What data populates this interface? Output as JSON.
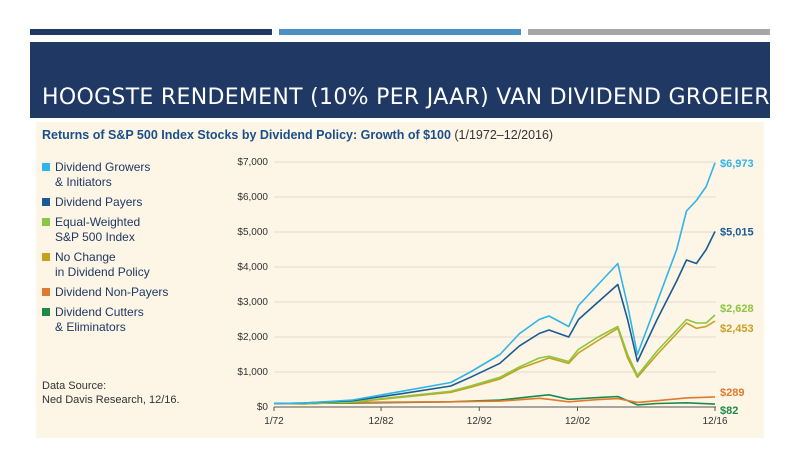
{
  "slide": {
    "title": "HOOGSTE RENDEMENT (10% PER JAAR) VAN DIVIDEND GROEIERS",
    "accent_bars": [
      "#1f3864",
      "#4a90c2",
      "#a6a6a6"
    ]
  },
  "chart_data": {
    "type": "line",
    "title": "Returns of S&P 500 Index Stocks by Dividend Policy: Growth of $100",
    "subtitle": "(1/1972–12/2016)",
    "source": "Data Source:\nNed Davis Research, 12/16.",
    "xticks": [
      "1/72",
      "12/82",
      "12/92",
      "12/02",
      "12/16"
    ],
    "xtick_years": [
      1972,
      1982.9,
      1992.9,
      2002.9,
      2016.9
    ],
    "yticks": [
      "$0",
      "$1,000",
      "$2,000",
      "$3,000",
      "$4,000",
      "$5,000",
      "$6,000",
      "$7,000"
    ],
    "ylim": [
      0,
      7000
    ],
    "xlim": [
      1972,
      2017
    ],
    "grid": true,
    "legend_position": "left",
    "series": [
      {
        "name": "Dividend Growers\n& Initiators",
        "color": "#2fb5e8",
        "end_label": "$6,973",
        "x": [
          1972,
          1975,
          1980,
          1985,
          1990,
          1992,
          1995,
          1997,
          1999,
          2000,
          2002,
          2003,
          2005,
          2007,
          2008,
          2009,
          2011,
          2013,
          2014,
          2015,
          2016,
          2016.9
        ],
        "y": [
          100,
          110,
          200,
          450,
          700,
          1000,
          1500,
          2100,
          2500,
          2600,
          2300,
          2900,
          3500,
          4100,
          2900,
          1500,
          3000,
          4500,
          5600,
          5900,
          6300,
          6973
        ]
      },
      {
        "name": "Dividend Payers",
        "color": "#1b5a96",
        "end_label": "$5,015",
        "x": [
          1972,
          1975,
          1980,
          1985,
          1990,
          1992,
          1995,
          1997,
          1999,
          2000,
          2002,
          2003,
          2005,
          2007,
          2008,
          2009,
          2011,
          2013,
          2014,
          2015,
          2016,
          2016.9
        ],
        "y": [
          100,
          110,
          180,
          380,
          600,
          850,
          1250,
          1750,
          2100,
          2200,
          2000,
          2500,
          3000,
          3500,
          2500,
          1300,
          2500,
          3600,
          4200,
          4100,
          4500,
          5015
        ]
      },
      {
        "name": "Equal-Weighted\nS&P 500 Index",
        "color": "#8cc63f",
        "end_label": "$2,628",
        "x": [
          1972,
          1975,
          1980,
          1985,
          1990,
          1992,
          1995,
          1997,
          1999,
          2000,
          2002,
          2003,
          2005,
          2007,
          2008,
          2009,
          2011,
          2013,
          2014,
          2015,
          2016,
          2016.9
        ],
        "y": [
          100,
          90,
          150,
          300,
          450,
          600,
          850,
          1150,
          1400,
          1450,
          1300,
          1650,
          2000,
          2300,
          1500,
          900,
          1600,
          2200,
          2500,
          2400,
          2400,
          2628
        ]
      },
      {
        "name": "No Change\nin Dividend Policy",
        "color": "#c8a020",
        "end_label": "$2,453",
        "x": [
          1972,
          1975,
          1980,
          1985,
          1990,
          1992,
          1995,
          1997,
          1999,
          2000,
          2002,
          2003,
          2005,
          2007,
          2008,
          2009,
          2011,
          2013,
          2014,
          2015,
          2016,
          2016.9
        ],
        "y": [
          100,
          90,
          140,
          280,
          420,
          560,
          800,
          1100,
          1300,
          1400,
          1250,
          1550,
          1900,
          2250,
          1400,
          850,
          1500,
          2100,
          2400,
          2250,
          2300,
          2453
        ]
      },
      {
        "name": "Dividend Non-Payers",
        "color": "#e07a2e",
        "end_label": "$289",
        "x": [
          1972,
          1980,
          1990,
          1995,
          1999,
          2000,
          2002,
          2005,
          2007,
          2009,
          2011,
          2014,
          2016.9
        ],
        "y": [
          100,
          130,
          150,
          170,
          250,
          220,
          150,
          210,
          240,
          130,
          180,
          260,
          289
        ]
      },
      {
        "name": "Dividend Cutters\n& Eliminators",
        "color": "#1e8a4a",
        "end_label": "$82",
        "x": [
          1972,
          1980,
          1990,
          1995,
          1999,
          2000,
          2002,
          2005,
          2007,
          2009,
          2011,
          2014,
          2016.9
        ],
        "y": [
          100,
          110,
          150,
          200,
          320,
          350,
          220,
          270,
          300,
          60,
          100,
          120,
          82
        ]
      }
    ]
  }
}
